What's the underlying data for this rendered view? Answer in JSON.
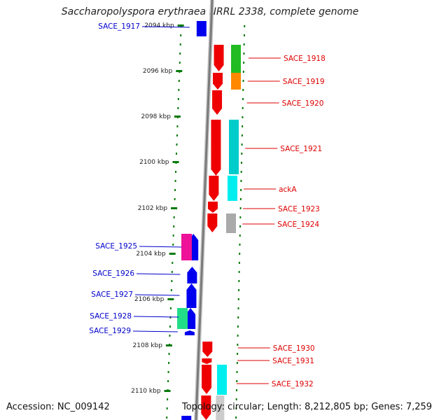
{
  "title": "Saccharopolyspora erythraea NRRL 2338, complete genome",
  "footer": {
    "accession": "Accession: NC_009142",
    "topology": "Topology: circular; Length: 8,212,805 bp; Genes: 7,259"
  },
  "colors": {
    "backbone": "#8a8a8a",
    "tick": "#0a7a0a",
    "left_label": "#0000cc",
    "right_label": "#dd0000",
    "scale_label": "#222222"
  },
  "scale_ticks": [
    {
      "label": "2094 kbp",
      "kbp": 2094
    },
    {
      "label": "2096 kbp",
      "kbp": 2096
    },
    {
      "label": "2098 kbp",
      "kbp": 2098
    },
    {
      "label": "2100 kbp",
      "kbp": 2100
    },
    {
      "label": "2102 kbp",
      "kbp": 2102
    },
    {
      "label": "2104 kbp",
      "kbp": 2104
    },
    {
      "label": "2106 kbp",
      "kbp": 2106
    },
    {
      "label": "2108 kbp",
      "kbp": 2108
    },
    {
      "label": "2110 kbp",
      "kbp": 2110
    }
  ],
  "genes_left": [
    {
      "label": "SACE_1917",
      "color": "#0000ee",
      "fill": "#0000ee",
      "extra": ""
    },
    {
      "label": "SACE_1925",
      "color": "#0000ee",
      "fill": "#0000ee",
      "extra": "#ee1199"
    },
    {
      "label": "SACE_1926",
      "color": "#0000ee",
      "fill": "#0000ee",
      "extra": ""
    },
    {
      "label": "SACE_1927",
      "color": "#0000ee",
      "fill": "#0000ee",
      "extra": ""
    },
    {
      "label": "SACE_1928",
      "color": "#0000ee",
      "fill": "#0000ee",
      "extra": "#22dd88"
    },
    {
      "label": "SACE_1929",
      "color": "#0000ee",
      "fill": "#0000ee",
      "extra": ""
    }
  ],
  "genes_right": [
    {
      "label": "SACE_1918",
      "fill": "#ee0000",
      "extra": "#22bb22"
    },
    {
      "label": "SACE_1919",
      "fill": "#ee0000",
      "extra": "#ff8800"
    },
    {
      "label": "SACE_1920",
      "fill": "#ee0000",
      "extra": ""
    },
    {
      "label": "SACE_1921",
      "fill": "#ee0000",
      "extra": "#00cccc"
    },
    {
      "label": "ackA",
      "fill": "#ee0000",
      "extra": "#00eeee"
    },
    {
      "label": "SACE_1923",
      "fill": "#ee0000",
      "extra": ""
    },
    {
      "label": "SACE_1924",
      "fill": "#ee0000",
      "extra": "#aaaaaa"
    },
    {
      "label": "SACE_1930",
      "fill": "#ee0000",
      "extra": ""
    },
    {
      "label": "SACE_1931",
      "fill": "#ee0000",
      "extra": ""
    },
    {
      "label": "SACE_1932",
      "fill": "#ee0000",
      "extra": "#00eeee"
    }
  ]
}
